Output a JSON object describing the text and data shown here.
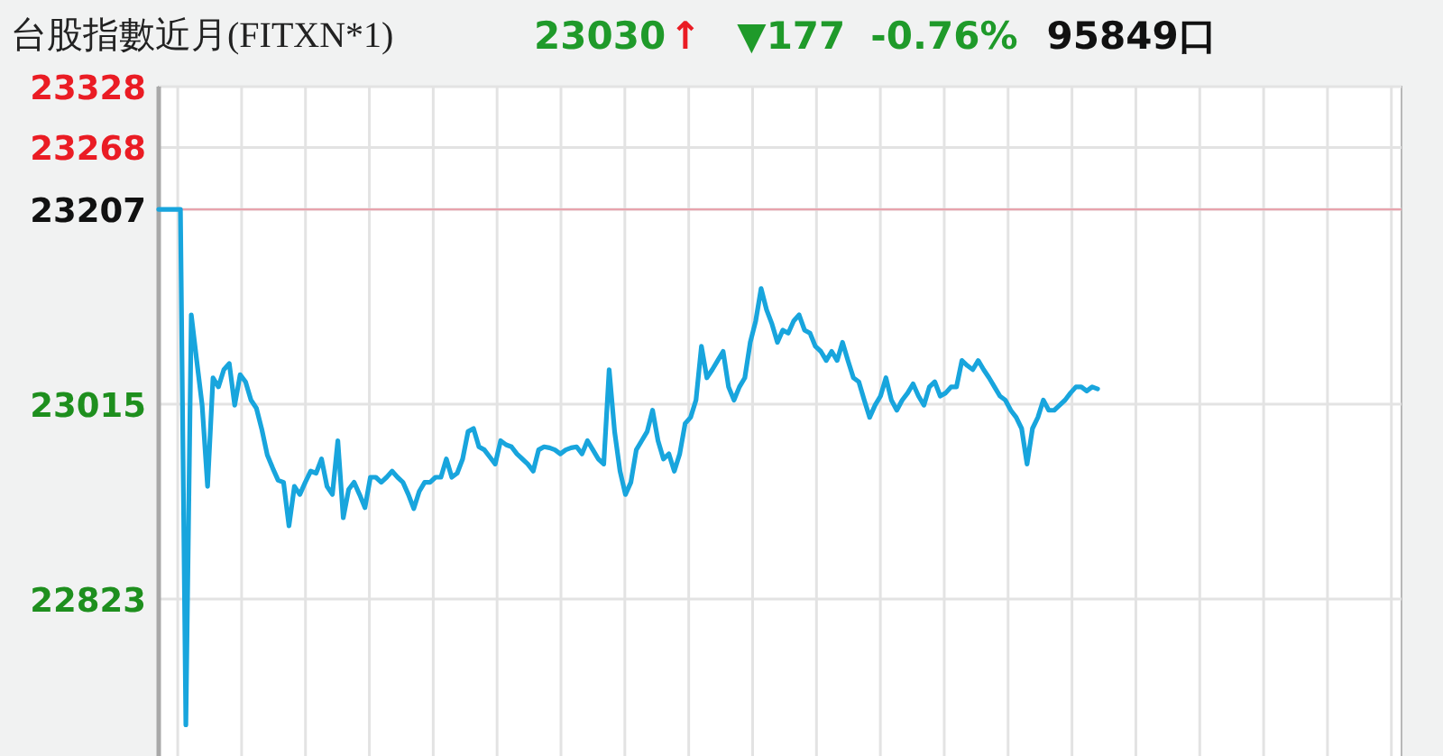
{
  "chart_data": {
    "type": "line",
    "title": "台股指數近月(FITXN*1)",
    "annotations": [
      "23030",
      "↑",
      "▼177",
      "-0.76%",
      "95849口"
    ],
    "categories": [
      null,
      null,
      null,
      null,
      null,
      null,
      null,
      null,
      null,
      null,
      null,
      null,
      null,
      null,
      null,
      null,
      null,
      null,
      null,
      null,
      null,
      null,
      null,
      null,
      null,
      null,
      null,
      null,
      null,
      null,
      null,
      null,
      null,
      null,
      null,
      null,
      null,
      null,
      null,
      null,
      null,
      null,
      null,
      null,
      null,
      null,
      null,
      null,
      null,
      null,
      null,
      null,
      null,
      null,
      null,
      null,
      null,
      null,
      null,
      null,
      null,
      null,
      null,
      null,
      null,
      null,
      null,
      null,
      null,
      null,
      null,
      null,
      null,
      null,
      null,
      null,
      null,
      null,
      null,
      null,
      null,
      null,
      null,
      null,
      null,
      null,
      null,
      null,
      null,
      null,
      null,
      null,
      null,
      null,
      null,
      null,
      null,
      null,
      null,
      null,
      null,
      null,
      null,
      null,
      null,
      null,
      null,
      null,
      null,
      null,
      null,
      null,
      null,
      null,
      null,
      null,
      null,
      null,
      null,
      null,
      null,
      null,
      null,
      null,
      null,
      null,
      null,
      null,
      null,
      null,
      null,
      null,
      null,
      null,
      null,
      null,
      null,
      null,
      null,
      null,
      null,
      null,
      null,
      null,
      null,
      null,
      null,
      null,
      null,
      null,
      null,
      null,
      null,
      null,
      null,
      null,
      null,
      null,
      null,
      null,
      null,
      null,
      null,
      null,
      null,
      null,
      null,
      null,
      null,
      null,
      null,
      null,
      null,
      null,
      null,
      null,
      null,
      null,
      null,
      null,
      null,
      null,
      null,
      null,
      null,
      null,
      null,
      null,
      null,
      null,
      null,
      null,
      null,
      null,
      null,
      null,
      null,
      null,
      null,
      null,
      null,
      null,
      null,
      null,
      null,
      null,
      null,
      null,
      null,
      null,
      null,
      null,
      null,
      null,
      null,
      null,
      null,
      null,
      null,
      null,
      null,
      null,
      null,
      null,
      null,
      null,
      null,
      null,
      null,
      null
    ],
    "series": [
      {
        "color": "#18a5dd",
        "values": [
          23207,
          23207,
          23207,
          23207,
          23207,
          22699,
          23103,
          23058,
          23014,
          22934,
          23041,
          23032,
          23049,
          23055,
          23014,
          23044,
          23037,
          23019,
          23011,
          22990,
          22965,
          22952,
          22940,
          22938,
          22895,
          22934,
          22926,
          22938,
          22949,
          22947,
          22961,
          22934,
          22926,
          22979,
          22903,
          22931,
          22938,
          22926,
          22913,
          22943,
          22943,
          22938,
          22943,
          22949,
          22943,
          22938,
          22926,
          22912,
          22929,
          22938,
          22938,
          22943,
          22943,
          22961,
          22943,
          22947,
          22961,
          22988,
          22991,
          22973,
          22970,
          22963,
          22956,
          22979,
          22975,
          22973,
          22966,
          22961,
          22956,
          22949,
          22970,
          22973,
          22972,
          22970,
          22966,
          22970,
          22972,
          22973,
          22966,
          22979,
          22970,
          22961,
          22956,
          23049,
          22988,
          22949,
          22926,
          22938,
          22970,
          22979,
          22988,
          23009,
          22979,
          22961,
          22966,
          22949,
          22966,
          22996,
          23002,
          23019,
          23072,
          23041,
          23049,
          23058,
          23067,
          23032,
          23019,
          23032,
          23041,
          23076,
          23097,
          23129,
          23108,
          23094,
          23076,
          23088,
          23085,
          23097,
          23103,
          23088,
          23085,
          23072,
          23067,
          23058,
          23067,
          23058,
          23076,
          23058,
          23041,
          23037,
          23019,
          23002,
          23014,
          23023,
          23041,
          23019,
          23009,
          23019,
          23026,
          23035,
          23023,
          23014,
          23032,
          23037,
          23023,
          23026,
          23032,
          23032,
          23058,
          23053,
          23049,
          23058,
          23049,
          23041,
          23032,
          23023,
          23019,
          23009,
          23002,
          22991,
          22956,
          22991,
          23002,
          23019,
          23009,
          23009,
          23014,
          23019,
          23026,
          23032,
          23032,
          23028,
          23032,
          23030,
          null,
          null,
          null,
          null,
          null,
          null,
          null,
          null,
          null,
          null,
          null,
          null,
          null,
          null,
          null,
          null,
          null,
          null,
          null,
          null,
          null,
          null,
          null,
          null,
          null,
          null,
          null,
          null,
          null,
          null,
          null,
          null,
          null,
          null,
          null,
          null,
          null,
          null,
          null,
          null,
          null,
          null,
          null,
          null,
          null,
          null,
          null,
          null,
          null,
          null,
          null,
          null,
          null,
          null,
          null,
          null
        ]
      }
    ],
    "ylim": [
      22670,
      23328
    ],
    "yticks": [
      22823,
      23015,
      23207,
      23268,
      23328
    ],
    "ref_lines": [
      {
        "axis": "y",
        "value": 23207,
        "color": "#e8a3ad"
      }
    ],
    "grid": true
  }
}
